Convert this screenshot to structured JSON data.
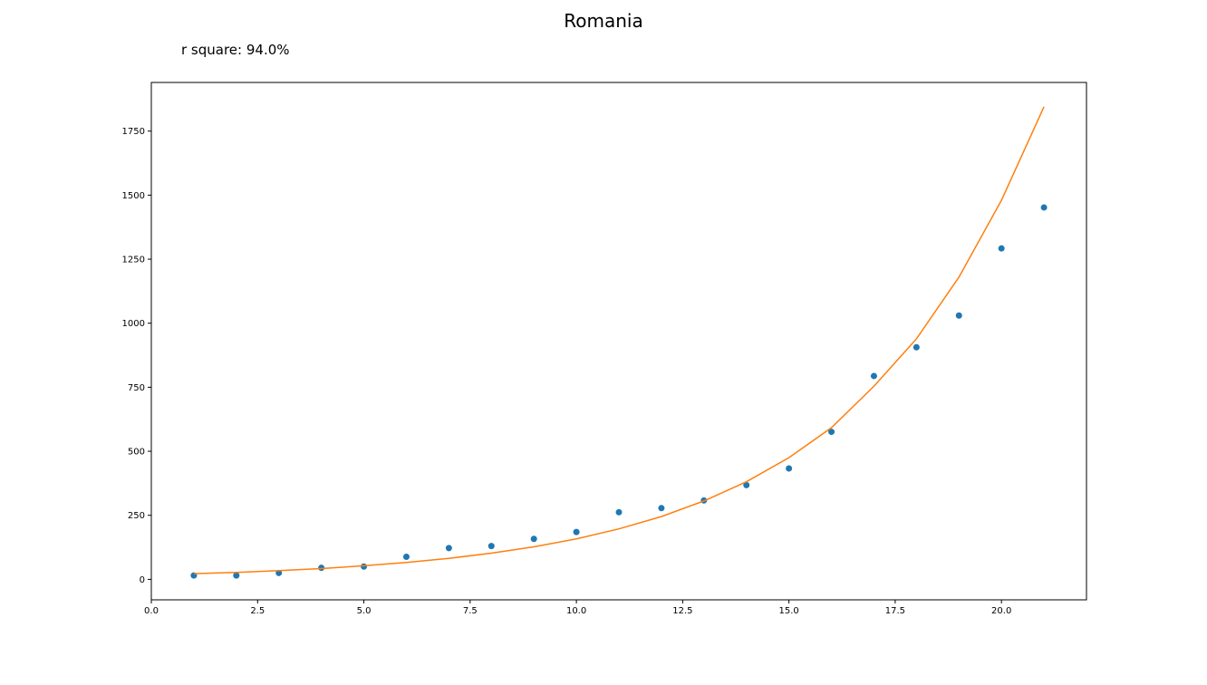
{
  "chart_data": {
    "type": "scatter",
    "title": "Romania",
    "annotation": "r square: 94.0%",
    "xlabel": "",
    "ylabel": "",
    "xlim": [
      0.0,
      22.0
    ],
    "ylim": [
      -80,
      1940
    ],
    "x_ticks": [
      0.0,
      2.5,
      5.0,
      7.5,
      10.0,
      12.5,
      15.0,
      17.5,
      20.0
    ],
    "x_tick_labels": [
      "0.0",
      "2.5",
      "5.0",
      "7.5",
      "10.0",
      "12.5",
      "15.0",
      "17.5",
      "20.0"
    ],
    "y_ticks": [
      0,
      250,
      500,
      750,
      1000,
      1250,
      1500,
      1750
    ],
    "y_tick_labels": [
      "0",
      "250",
      "500",
      "750",
      "1000",
      "1250",
      "1500",
      "1750"
    ],
    "grid": false,
    "series": [
      {
        "type": "scatter",
        "color": "#1f77b4",
        "x": [
          1,
          2,
          3,
          4,
          5,
          6,
          7,
          8,
          9,
          10,
          11,
          12,
          13,
          14,
          15,
          16,
          17,
          18,
          19,
          20,
          21
        ],
        "y": [
          15,
          15,
          25,
          45,
          50,
          88,
          122,
          130,
          158,
          185,
          262,
          278,
          308,
          368,
          433,
          576,
          794,
          906,
          1030,
          1292,
          1452
        ]
      },
      {
        "type": "line",
        "color": "#ff7f0e",
        "x": [
          1,
          2,
          3,
          4,
          5,
          6,
          7,
          8,
          9,
          10,
          11,
          12,
          13,
          14,
          15,
          16,
          17,
          18,
          19,
          20,
          21
        ],
        "y": [
          22,
          27,
          34,
          42,
          53,
          66,
          82,
          102,
          127,
          158,
          197,
          245,
          306,
          381,
          475,
          592,
          754,
          939,
          1180,
          1480,
          1845
        ]
      }
    ]
  }
}
